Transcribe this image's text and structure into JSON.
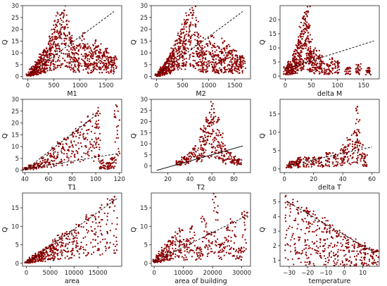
{
  "colors": {
    "points": "#8b0000",
    "trend": "#000000"
  },
  "chart_data": [
    {
      "type": "scatter",
      "title": "",
      "xlabel": "M1",
      "ylabel": "Q",
      "xlim": [
        -100,
        1800
      ],
      "ylim": [
        -1,
        30
      ],
      "xticks": [
        0,
        500,
        1000,
        1500
      ],
      "xticklabels": [
        "0",
        "500",
        "1000",
        "1500"
      ],
      "yticks": [
        0,
        5,
        10,
        15,
        20,
        25,
        30
      ],
      "yticklabels": [
        "0",
        "5",
        "10",
        "15",
        "20",
        "25",
        "30"
      ],
      "trend": {
        "x": [
          0,
          1650
        ],
        "y": [
          0.5,
          27.5
        ],
        "style": "dashed"
      },
      "series": [
        {
          "x": [
            30,
            60,
            90,
            120,
            150,
            180,
            210,
            240,
            270,
            300,
            330,
            360,
            400,
            430,
            470,
            500,
            540,
            580,
            620,
            660,
            700,
            750,
            800,
            850,
            880,
            920,
            980,
            1050,
            1100,
            1150,
            1200,
            1250,
            1300,
            1350,
            1400,
            1450,
            1500,
            1550,
            1600,
            1650
          ],
          "y": [
            1,
            2,
            3,
            4,
            5,
            6,
            7,
            8,
            9,
            10,
            11,
            12,
            14,
            16,
            18,
            20,
            22,
            24,
            26,
            27,
            28,
            22,
            18,
            15,
            12,
            10,
            13,
            17,
            13,
            9,
            12,
            10,
            15,
            13,
            10,
            9,
            11,
            8,
            8,
            8
          ]
        }
      ]
    },
    {
      "type": "scatter",
      "title": "",
      "xlabel": "M2",
      "ylabel": "Q",
      "xlim": [
        -100,
        1800
      ],
      "ylim": [
        -1,
        30
      ],
      "xticks": [
        0,
        500,
        1000,
        1500
      ],
      "xticklabels": [
        "0",
        "500",
        "1000",
        "1500"
      ],
      "yticks": [
        0,
        5,
        10,
        15,
        20,
        25,
        30
      ],
      "yticklabels": [
        "0",
        "5",
        "10",
        "15",
        "20",
        "25",
        "30"
      ],
      "trend": {
        "x": [
          0,
          1650
        ],
        "y": [
          0.5,
          27.5
        ],
        "style": "dashed"
      },
      "series": [
        {
          "x": [
            30,
            60,
            90,
            120,
            150,
            180,
            210,
            240,
            270,
            300,
            330,
            360,
            400,
            430,
            470,
            500,
            540,
            580,
            620,
            660,
            700,
            750,
            800,
            850,
            880,
            920,
            980,
            1050,
            1100,
            1150,
            1200,
            1250,
            1300,
            1350,
            1400,
            1450,
            1500,
            1550,
            1600,
            1650
          ],
          "y": [
            1,
            2,
            3,
            4,
            5,
            6,
            7,
            8,
            9,
            10,
            11,
            12,
            14,
            16,
            18,
            20,
            22,
            24,
            26,
            27,
            28,
            22,
            18,
            15,
            12,
            10,
            13,
            17,
            13,
            9,
            12,
            10,
            15,
            13,
            10,
            9,
            11,
            8,
            8,
            8
          ]
        }
      ]
    },
    {
      "type": "scatter",
      "title": "",
      "xlabel": "delta M",
      "ylabel": "Q",
      "xlim": [
        -10,
        180
      ],
      "ylim": [
        -1,
        25
      ],
      "xticks": [
        0,
        50,
        100,
        150
      ],
      "xticklabels": [
        "0",
        "50",
        "100",
        "150"
      ],
      "yticks": [
        0,
        5,
        10,
        15,
        20
      ],
      "yticklabels": [
        "0",
        "5",
        "10",
        "15",
        "20"
      ],
      "trend": {
        "x": [
          0,
          170
        ],
        "y": [
          2.5,
          12.5
        ],
        "style": "dashed"
      },
      "series": [
        {
          "x": [
            2,
            5,
            8,
            10,
            12,
            15,
            18,
            20,
            22,
            25,
            28,
            30,
            32,
            35,
            38,
            40,
            42,
            44,
            46,
            48,
            50,
            55,
            60,
            65,
            70,
            80,
            90,
            100,
            120,
            140,
            160
          ],
          "y": [
            3,
            3,
            4,
            5,
            4,
            6,
            7,
            8,
            9,
            10,
            12,
            14,
            16,
            18,
            20,
            22,
            23,
            17,
            12,
            9,
            8,
            6,
            9,
            7,
            5,
            4,
            6,
            5,
            3,
            4,
            3
          ]
        }
      ]
    },
    {
      "type": "scatter",
      "title": "",
      "xlabel": "T1",
      "ylabel": "Q",
      "xlim": [
        38,
        122
      ],
      "ylim": [
        -1,
        30
      ],
      "xticks": [
        40,
        60,
        80,
        100,
        120
      ],
      "xticklabels": [
        "40",
        "60",
        "80",
        "100",
        "120"
      ],
      "yticks": [
        0,
        5,
        10,
        15,
        20,
        25,
        30
      ],
      "yticklabels": [
        "0",
        "5",
        "10",
        "15",
        "20",
        "25",
        "30"
      ],
      "trend": {
        "x": [
          40,
          118
        ],
        "y": [
          0.5,
          7
        ],
        "style": "dashed"
      },
      "trend2": {
        "x": [
          40,
          102
        ],
        "y": [
          0,
          24
        ],
        "style": "dashed"
      },
      "series": [
        {
          "x": [
            40,
            45,
            50,
            55,
            60,
            65,
            70,
            75,
            80,
            85,
            90,
            95,
            100,
            102,
            105,
            110,
            115,
            118
          ],
          "y": [
            1,
            2,
            3,
            5,
            7,
            9,
            11,
            13,
            15,
            17,
            19,
            21,
            23,
            25,
            4,
            3,
            5,
            27
          ]
        }
      ]
    },
    {
      "type": "scatter",
      "title": "",
      "xlabel": "T2",
      "ylabel": "Q",
      "xlim": [
        5,
        95
      ],
      "ylim": [
        -3,
        30
      ],
      "xticks": [
        20,
        40,
        60,
        80
      ],
      "xticklabels": [
        "20",
        "40",
        "60",
        "80"
      ],
      "yticks": [
        0,
        5,
        10,
        15,
        20,
        25,
        30
      ],
      "yticklabels": [
        "0",
        "5",
        "10",
        "15",
        "20",
        "25",
        "30"
      ],
      "trend": {
        "x": [
          10,
          88
        ],
        "y": [
          -2,
          9
        ],
        "style": "solid"
      },
      "series": [
        {
          "x": [
            30,
            35,
            40,
            45,
            50,
            52,
            55,
            58,
            60,
            62,
            65,
            68,
            70,
            75,
            80,
            85
          ],
          "y": [
            2,
            4,
            6,
            9,
            13,
            16,
            20,
            24,
            27,
            24,
            20,
            14,
            10,
            6,
            4,
            3
          ]
        }
      ]
    },
    {
      "type": "scatter",
      "title": "",
      "xlabel": "delta T",
      "ylabel": "Q",
      "xlim": [
        -3,
        65
      ],
      "ylim": [
        -1,
        19
      ],
      "xticks": [
        0,
        20,
        40,
        60
      ],
      "xticklabels": [
        "0",
        "20",
        "40",
        "60"
      ],
      "yticks": [
        0,
        5,
        10,
        15
      ],
      "yticklabels": [
        "0",
        "5",
        "10",
        "15"
      ],
      "trend": {
        "x": [
          3,
          60
        ],
        "y": [
          1,
          6
        ],
        "style": "dashed"
      },
      "series": [
        {
          "x": [
            3,
            5,
            8,
            10,
            15,
            20,
            25,
            30,
            35,
            40,
            42,
            45,
            48,
            50,
            52,
            55
          ],
          "y": [
            1,
            2,
            2,
            3,
            3,
            3,
            3,
            4,
            4,
            5,
            6,
            8,
            10,
            17,
            7,
            4
          ]
        }
      ]
    },
    {
      "type": "scatter",
      "title": "",
      "xlabel": "area",
      "ylabel": "Q",
      "xlim": [
        -800,
        20000
      ],
      "ylim": [
        -0.8,
        19
      ],
      "xticks": [
        0,
        5000,
        10000,
        15000
      ],
      "xticklabels": [
        "0",
        "5000",
        "10000",
        "15000"
      ],
      "yticks": [
        0,
        5,
        10,
        15
      ],
      "yticklabels": [
        "0",
        "5",
        "10",
        "15"
      ],
      "trend": {
        "x": [
          0,
          19000
        ],
        "y": [
          0,
          17.5
        ],
        "style": "dashed"
      },
      "series": [
        {
          "x": [
            300,
            800,
            1200,
            1800,
            2500,
            3000,
            3500,
            4200,
            5000,
            5500,
            6000,
            7000,
            8000,
            9000,
            10000,
            11000,
            12500,
            14000,
            15500,
            17000,
            18500
          ],
          "y": [
            0.5,
            1,
            1.5,
            2,
            2.5,
            3,
            3.5,
            4,
            4.5,
            5,
            6,
            7,
            7.5,
            8,
            9,
            10,
            12,
            13,
            15,
            16,
            18
          ]
        }
      ]
    },
    {
      "type": "scatter",
      "title": "",
      "xlabel": "area of building",
      "ylabel": "Q",
      "xlim": [
        -1000,
        33000
      ],
      "ylim": [
        -0.8,
        19
      ],
      "xticks": [
        0,
        10000,
        20000,
        30000
      ],
      "xticklabels": [
        "0",
        "10000",
        "20000",
        "30000"
      ],
      "yticks": [
        0,
        5,
        10,
        15
      ],
      "yticklabels": [
        "0",
        "5",
        "10",
        "15"
      ],
      "trend": {
        "x": [
          0,
          32000
        ],
        "y": [
          0.5,
          13
        ],
        "style": "dashed"
      },
      "series": [
        {
          "x": [
            500,
            1500,
            2500,
            3500,
            4500,
            5500,
            6500,
            8000,
            9500,
            11000,
            13000,
            15000,
            17000,
            19000,
            21000,
            23000,
            25000,
            27000,
            29000,
            31000
          ],
          "y": [
            1,
            2,
            3,
            4,
            5,
            6,
            7,
            8,
            9,
            6,
            10,
            4,
            12,
            8,
            18,
            5,
            9,
            11,
            4,
            13
          ]
        }
      ]
    },
    {
      "type": "scatter",
      "title": "",
      "xlabel": "temperature",
      "ylabel": "Q",
      "xlim": [
        -35,
        19
      ],
      "ylim": [
        0.6,
        5.6
      ],
      "xticks": [
        -30,
        -20,
        -10,
        0,
        10
      ],
      "xticklabels": [
        "−30",
        "−20",
        "−10",
        "0",
        "10"
      ],
      "yticks": [
        1,
        2,
        3,
        4,
        5
      ],
      "yticklabels": [
        "1",
        "2",
        "3",
        "4",
        "5"
      ],
      "trend": {
        "x": [
          -31,
          17
        ],
        "y": [
          5.0,
          1.5
        ],
        "style": "dashed"
      },
      "series": [
        {
          "x": [
            -31,
            -28,
            -25,
            -22,
            -20,
            -18,
            -15,
            -12,
            -10,
            -8,
            -5,
            -3,
            0,
            2,
            5,
            8,
            10,
            12,
            15,
            17
          ],
          "y": [
            5.0,
            4.8,
            4.6,
            4.4,
            4.2,
            4.0,
            3.9,
            3.6,
            3.4,
            3.2,
            3.0,
            2.8,
            2.6,
            2.4,
            2.3,
            2.1,
            2.0,
            1.8,
            1.7,
            1.6
          ]
        }
      ]
    }
  ]
}
